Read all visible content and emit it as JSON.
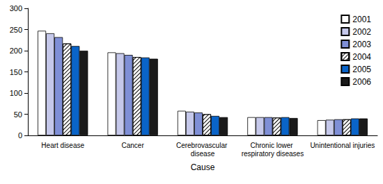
{
  "chart_data": {
    "type": "bar",
    "categories": [
      "Heart disease",
      "Cancer",
      "Cerebrovascular disease",
      "Chronic lower respiratory diseases",
      "Unintentional injuries"
    ],
    "x_label": "Cause",
    "series": [
      {
        "name": "2001",
        "color": "#ffffff",
        "values": [
          247,
          196,
          58,
          43,
          36
        ]
      },
      {
        "name": "2002",
        "color": "#c5c8ea",
        "values": [
          241,
          194,
          56,
          43,
          37
        ]
      },
      {
        "name": "2003",
        "color": "#7f8fd6",
        "values": [
          232,
          190,
          54,
          43,
          38
        ]
      },
      {
        "name": "2004",
        "color": "#ffffff",
        "values": [
          217,
          185,
          50,
          42,
          38
        ]
      },
      {
        "name": "2005",
        "color": "#0a64c8",
        "values": [
          211,
          184,
          46,
          43,
          40
        ]
      },
      {
        "name": "2006",
        "color": "#1a1a1a",
        "values": [
          200,
          181,
          43,
          41,
          40
        ]
      }
    ],
    "ylim": [
      0,
      300
    ],
    "yticks": [
      0,
      50,
      100,
      150,
      200,
      250,
      300
    ],
    "grid": false,
    "legend": "upper right"
  }
}
